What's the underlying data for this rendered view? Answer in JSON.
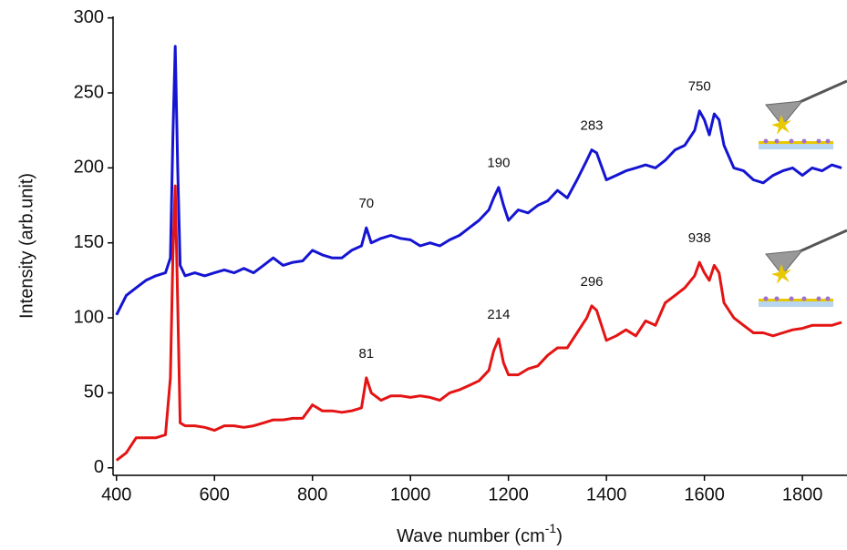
{
  "chart_data": {
    "type": "line",
    "xlabel": [
      "Wave number (cm",
      "-1",
      ")"
    ],
    "ylabel": "Intensity (arb.unit)",
    "xlim": [
      393,
      1891
    ],
    "ylim": [
      -5,
      301
    ],
    "xticks": [
      400,
      600,
      800,
      1000,
      1200,
      1400,
      1600,
      1800
    ],
    "yticks": [
      0,
      50,
      100,
      150,
      200,
      250,
      300
    ],
    "x": [
      400,
      420,
      440,
      460,
      480,
      500,
      510,
      515,
      520,
      525,
      530,
      540,
      560,
      580,
      600,
      620,
      640,
      660,
      680,
      700,
      720,
      740,
      760,
      780,
      800,
      820,
      840,
      860,
      880,
      900,
      910,
      920,
      940,
      960,
      980,
      1000,
      1020,
      1040,
      1060,
      1080,
      1100,
      1120,
      1140,
      1160,
      1170,
      1180,
      1190,
      1200,
      1220,
      1240,
      1260,
      1280,
      1300,
      1320,
      1340,
      1360,
      1370,
      1380,
      1400,
      1420,
      1440,
      1460,
      1480,
      1500,
      1520,
      1540,
      1560,
      1580,
      1590,
      1600,
      1610,
      1620,
      1630,
      1640,
      1660,
      1680,
      1700,
      1720,
      1740,
      1760,
      1780,
      1800,
      1820,
      1840,
      1860,
      1880
    ],
    "series": [
      {
        "color": "#1414d2",
        "values": [
          102,
          115,
          120,
          125,
          128,
          130,
          140,
          220,
          281,
          200,
          135,
          128,
          130,
          128,
          130,
          132,
          130,
          133,
          130,
          135,
          140,
          135,
          137,
          138,
          145,
          142,
          140,
          140,
          145,
          148,
          160,
          150,
          153,
          155,
          153,
          152,
          148,
          150,
          148,
          152,
          155,
          160,
          165,
          172,
          180,
          187,
          175,
          165,
          172,
          170,
          175,
          178,
          185,
          180,
          192,
          205,
          212,
          210,
          192,
          195,
          198,
          200,
          202,
          200,
          205,
          212,
          215,
          225,
          238,
          232,
          222,
          236,
          232,
          215,
          200,
          198,
          192,
          190,
          195,
          198,
          200,
          195,
          200,
          198,
          202,
          200
        ]
      },
      {
        "color": "#e41414",
        "values": [
          5,
          10,
          20,
          20,
          20,
          22,
          60,
          140,
          188,
          110,
          30,
          28,
          28,
          27,
          25,
          28,
          28,
          27,
          28,
          30,
          32,
          32,
          33,
          33,
          42,
          38,
          38,
          37,
          38,
          40,
          60,
          50,
          45,
          48,
          48,
          47,
          48,
          47,
          45,
          50,
          52,
          55,
          58,
          65,
          78,
          86,
          70,
          62,
          62,
          66,
          68,
          75,
          80,
          80,
          90,
          100,
          108,
          105,
          85,
          88,
          92,
          88,
          98,
          95,
          110,
          115,
          120,
          128,
          137,
          130,
          125,
          135,
          130,
          110,
          100,
          95,
          90,
          90,
          88,
          90,
          92,
          93,
          95,
          95,
          95,
          97
        ]
      }
    ],
    "annotations": [
      {
        "text": "70",
        "x": 910,
        "series": 0
      },
      {
        "text": "190",
        "x": 1180,
        "series": 0
      },
      {
        "text": "283",
        "x": 1370,
        "series": 0
      },
      {
        "text": "750",
        "x": 1590,
        "series": 0
      },
      {
        "text": "81",
        "x": 910,
        "series": 1
      },
      {
        "text": "214",
        "x": 1180,
        "series": 1
      },
      {
        "text": "296",
        "x": 1370,
        "series": 1
      },
      {
        "text": "938",
        "x": 1590,
        "series": 1
      }
    ]
  }
}
